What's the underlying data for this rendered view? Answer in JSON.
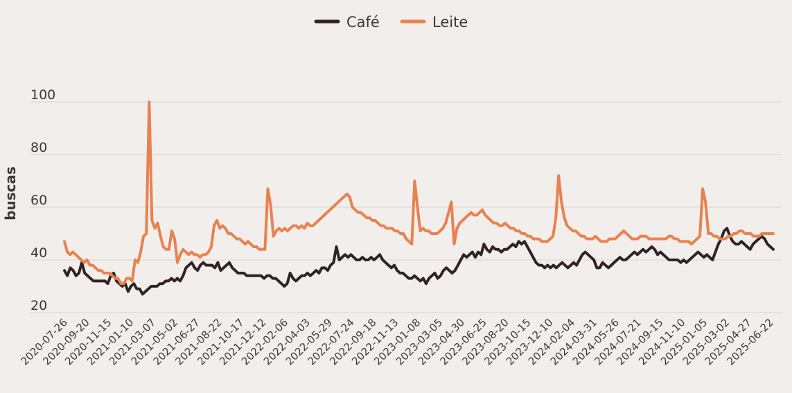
{
  "chart_data": {
    "type": "line",
    "title": "",
    "xlabel": "",
    "ylabel": "buscas",
    "ylim": [
      20,
      100
    ],
    "yticks": [
      20,
      40,
      60,
      80,
      100
    ],
    "grid": true,
    "legend_position": "top-center",
    "x_start": "2020-07-26",
    "x_end": "2025-06-29",
    "xtick_labels": [
      "2020-07-26",
      "2020-09-20",
      "2020-11-15",
      "2021-01-10",
      "2021-03-07",
      "2021-05-02",
      "2021-06-27",
      "2021-08-22",
      "2021-10-17",
      "2021-12-12",
      "2022-02-06",
      "2022-04-03",
      "2022-05-29",
      "2022-07-24",
      "2022-09-18",
      "2022-11-13",
      "2023-01-08",
      "2023-03-05",
      "2023-04-30",
      "2023-06-25",
      "2023-08-20",
      "2023-10-15",
      "2023-12-10",
      "2024-02-04",
      "2024-03-31",
      "2024-05-26",
      "2024-07-21",
      "2024-09-15",
      "2024-11-10",
      "2025-01-05",
      "2025-03-02",
      "2025-04-27",
      "2025-06-22"
    ],
    "series": [
      {
        "name": "Café",
        "color": "#2f2324",
        "values": [
          36,
          34,
          37,
          36,
          34,
          35,
          39,
          35,
          34,
          33,
          32,
          32,
          32,
          32,
          32,
          31,
          34,
          35,
          32,
          31,
          30,
          31,
          28,
          30,
          31,
          29,
          29,
          27,
          28,
          29,
          30,
          30,
          30,
          31,
          31,
          32,
          32,
          33,
          32,
          33,
          32,
          34,
          37,
          38,
          39,
          37,
          36,
          38,
          39,
          38,
          38,
          38,
          37,
          39,
          36,
          37,
          38,
          39,
          37,
          36,
          35,
          35,
          35,
          34,
          34,
          34,
          34,
          34,
          34,
          33,
          34,
          34,
          33,
          33,
          32,
          31,
          30,
          31,
          35,
          33,
          32,
          33,
          34,
          34,
          35,
          34,
          35,
          36,
          35,
          37,
          37,
          36,
          38,
          39,
          45,
          40,
          41,
          42,
          41,
          42,
          41,
          40,
          40,
          41,
          40,
          40,
          41,
          40,
          41,
          42,
          40,
          39,
          38,
          37,
          38,
          36,
          35,
          35,
          34,
          33,
          33,
          34,
          33,
          32,
          33,
          31,
          33,
          34,
          35,
          33,
          34,
          36,
          37,
          36,
          35,
          36,
          38,
          40,
          42,
          41,
          42,
          43,
          41,
          43,
          42,
          46,
          44,
          43,
          45,
          44,
          44,
          43,
          44,
          44,
          45,
          46,
          45,
          47,
          46,
          47,
          45,
          43,
          41,
          39,
          38,
          38,
          37,
          38,
          37,
          38,
          37,
          38,
          39,
          38,
          37,
          38,
          39,
          38,
          40,
          42,
          43,
          42,
          41,
          40,
          37,
          37,
          39,
          38,
          37,
          38,
          39,
          40,
          41,
          40,
          40,
          41,
          42,
          43,
          42,
          43,
          44,
          43,
          44,
          45,
          44,
          42,
          43,
          42,
          41,
          40,
          40,
          40,
          40,
          39,
          40,
          39,
          40,
          41,
          42,
          43,
          42,
          41,
          42,
          41,
          40,
          43,
          46,
          48,
          51,
          52,
          49,
          47,
          46,
          46,
          47,
          46,
          45,
          44,
          46,
          47,
          48,
          49,
          48,
          46,
          45,
          44
        ]
      },
      {
        "name": "Leite",
        "color": "#e8824f",
        "values": [
          47,
          43,
          42,
          43,
          42,
          41,
          40,
          39,
          40,
          38,
          38,
          37,
          36,
          36,
          35,
          35,
          35,
          34,
          33,
          33,
          31,
          31,
          33,
          33,
          32,
          40,
          39,
          43,
          49,
          50,
          100,
          55,
          52,
          54,
          49,
          45,
          44,
          44,
          51,
          48,
          39,
          42,
          44,
          43,
          42,
          43,
          42,
          42,
          41,
          42,
          42,
          43,
          45,
          53,
          55,
          52,
          53,
          52,
          50,
          50,
          49,
          48,
          48,
          47,
          46,
          47,
          46,
          45,
          45,
          44,
          44,
          44,
          67,
          61,
          49,
          51,
          52,
          51,
          52,
          51,
          52,
          53,
          53,
          52,
          53,
          52,
          54,
          53,
          53,
          54,
          55,
          56,
          57,
          58,
          59,
          60,
          61,
          62,
          63,
          64,
          65,
          64,
          60,
          59,
          58,
          58,
          57,
          56,
          56,
          55,
          55,
          54,
          53,
          53,
          52,
          52,
          52,
          51,
          51,
          50,
          50,
          48,
          47,
          46,
          70,
          60,
          51,
          52,
          51,
          51,
          50,
          50,
          50,
          51,
          52,
          54,
          58,
          62,
          46,
          52,
          54,
          55,
          56,
          57,
          58,
          57,
          57,
          58,
          59,
          57,
          56,
          55,
          54,
          54,
          53,
          53,
          54,
          53,
          52,
          52,
          51,
          51,
          50,
          50,
          49,
          49,
          48,
          48,
          48,
          47,
          47,
          47,
          48,
          49,
          56,
          72,
          62,
          56,
          53,
          52,
          51,
          51,
          50,
          49,
          49,
          48,
          48,
          48,
          49,
          48,
          47,
          47,
          47,
          48,
          48,
          48,
          49,
          50,
          51,
          50,
          49,
          48,
          48,
          48,
          49,
          49,
          49,
          48,
          48,
          48,
          48,
          48,
          48,
          48,
          49,
          49,
          48,
          48,
          47,
          47,
          47,
          47,
          46,
          47,
          48,
          49,
          67,
          62,
          50,
          50,
          49,
          49,
          48,
          48,
          48,
          49,
          49,
          50,
          50,
          51,
          51,
          50,
          50,
          50,
          49,
          49,
          49,
          50,
          50,
          50,
          50,
          50
        ]
      }
    ]
  }
}
